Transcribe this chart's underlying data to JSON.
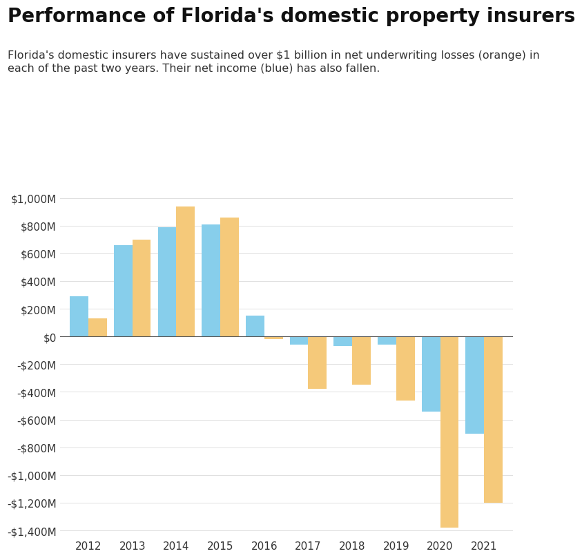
{
  "title": "Performance of Florida's domestic property insurers",
  "subtitle": "Florida's domestic insurers have sustained over $1 billion in net underwriting losses (orange) in\neach of the past two years. Their net income (blue) has also fallen.",
  "years": [
    2012,
    2013,
    2014,
    2015,
    2016,
    2017,
    2018,
    2019,
    2020,
    2021
  ],
  "net_income_blue": [
    290,
    660,
    790,
    810,
    150,
    -60,
    -70,
    -60,
    -540,
    -700
  ],
  "net_underwriting_orange": [
    130,
    700,
    940,
    860,
    -20,
    -380,
    -350,
    -460,
    -1380,
    -1200
  ],
  "blue_color": "#87CEEB",
  "orange_color": "#F5C97A",
  "bar_width": 0.42,
  "ylim": [
    -1450,
    1050
  ],
  "yticks": [
    -1400,
    -1200,
    -1000,
    -800,
    -600,
    -400,
    -200,
    0,
    200,
    400,
    600,
    800,
    1000
  ],
  "background_color": "#ffffff",
  "title_fontsize": 20,
  "subtitle_fontsize": 11.5,
  "tick_fontsize": 11,
  "grid_color": "#e0e0e0"
}
